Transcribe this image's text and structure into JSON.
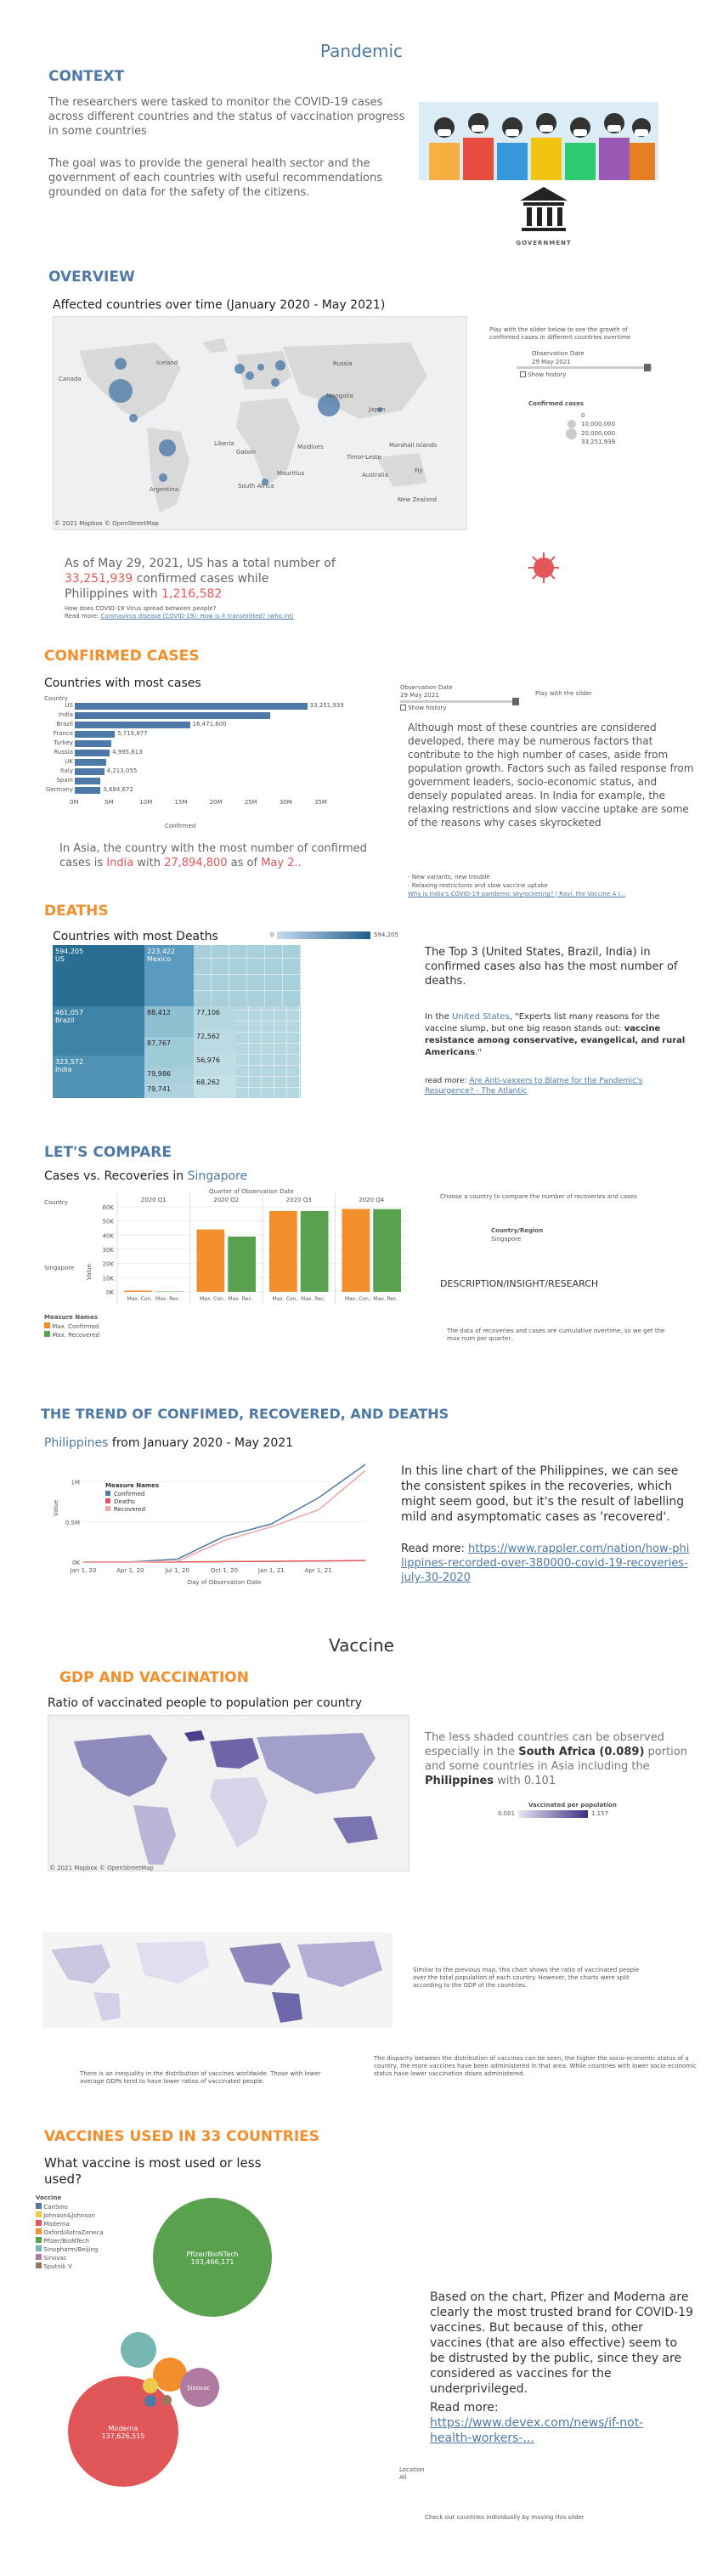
{
  "title": "Pandemic",
  "context": {
    "heading": "CONTEXT",
    "p1": "The researchers were tasked to monitor the COVID-19 cases across different countries and the status of vaccination progress in some countries",
    "p2": "The goal was to provide the general health sector and the government of each countries with useful recommendations grounded on data for the safety of the citizens.",
    "gov_label": "GOVERNMENT"
  },
  "overview": {
    "heading": "OVERVIEW",
    "chart_title": "Affected countries over time (January 2020 - May 2021)",
    "map_labels": [
      "Iceland",
      "Russia",
      "Canada",
      "Mongolia",
      "Japan",
      "Liberia",
      "Gabon",
      "Maldives",
      "Marshall Islands",
      "Timor-Leste",
      "Argentina",
      "Mauritius",
      "South Africa",
      "Australia",
      "Fiji",
      "New Zealand"
    ],
    "copyright": "© 2021 Mapbox © OpenStreetMap",
    "side_text": "Play with the slider below to see the growth of confirmed cases in different countries overtime",
    "obs_label": "Observation Date",
    "obs_value": "29 May 2021",
    "show_history": "Show history",
    "legend_title": "Confirmed cases",
    "legend_vals": [
      "0",
      "10,000,000",
      "20,000,000",
      "33,251,939"
    ],
    "summary_pre": "As of  May 29, 2021, US has a total number of",
    "summary_num": "33,251,939",
    "summary_mid": " confirmed cases while",
    "summary_country": "Philippines",
    "summary_with": " with ",
    "summary_ph": "1,216,582",
    "note1": "How does COVID-19 Virus spread between people?",
    "note2_pre": "Read more: ",
    "note2_link": "Coronavirus disease (COVID-19): How is it transmitted? (who.int)"
  },
  "confirmed": {
    "heading": "CONFIRMED CASES",
    "chart_title": "Countries with most cases",
    "country_label": "Country",
    "axis_title": "Confirmed",
    "ticks": [
      "0M",
      "5M",
      "10M",
      "15M",
      "20M",
      "25M",
      "30M",
      "35M"
    ],
    "obs_label": "Observation Date",
    "obs_value": "29 May 2021",
    "show_history": "Show history",
    "slider_hint": "Play with the slider",
    "body": "Although most of these countries are considered developed, there may be numerous factors that contribute to the high number of cases, aside from population growth. Factors such as failed response from government leaders, socio-economic status, and densely populated areas. In India for example, the relaxing restrictions and slow vaccine uptake are some of the reasons why cases skyrocketed",
    "b1": "- New variants, new trouble",
    "b2": "- Relaxing restrictions and slow vaccine uptake",
    "b3": "Why is India's COVID-19 pandemic skyrocketing? | Ravi, the Vaccine A I...",
    "asia_pre": "In Asia, the country with the most number of confirmed cases is ",
    "asia_country": "India",
    "asia_with": " with ",
    "asia_num": "27,894,800",
    "asia_as": " as of ",
    "asia_date": "May 2.."
  },
  "deaths": {
    "heading": "DEATHS",
    "chart_title": "Countries with most Deaths",
    "legend_min": "0",
    "legend_max": "594,205",
    "body1": "The Top 3 (United States, Brazil, India) in confirmed cases also has the most number of deaths.",
    "body2_pre": "In the ",
    "body2_country": "United States",
    "body2_text": ", \"Experts list many reasons for the vaccine slump, but one big reason stands out: ",
    "body2_bold": "vaccine resistance among conservative, evangelical, and rural Americans",
    "body2_end": ".\"",
    "read_pre": "read more: ",
    "read_link": "Are Anti-vaxxers to Blame for the Pandemic's Resurgence? - The Atlantic"
  },
  "compare": {
    "heading": "LET'S COMPARE",
    "chart_title_pre": "Cases vs. Recoveries in ",
    "chart_country": "Singapore",
    "top_label": "Quarter of Observation Date",
    "country_label": "Country",
    "row_label": "Singapore",
    "quarters": [
      "2020 Q1",
      "2020 Q2",
      "2020 Q3",
      "2020 Q4"
    ],
    "value_axis": "Value",
    "yticks": [
      "60K",
      "50K",
      "40K",
      "30K",
      "20K",
      "10K",
      "0K"
    ],
    "col_label": "Max. Con.. Max. Rec.",
    "legend_title": "Measure Names",
    "legend": [
      "Max. Confirmed",
      "Max. Recovered"
    ],
    "side_text": "Choose a country to compare the number of recoveries and cases",
    "region_label": "Country/Region",
    "region_value": "Singapore",
    "insight": "DESCRIPTION/INSIGHT/RESEARCH",
    "insight_text": "The data of recoveries and cases are cumulative overtime, so we get the max num per quarter.."
  },
  "trend": {
    "heading": "THE TREND OF CONFIMED, RECOVERED, AND DEATHS",
    "sub_country": "Philippines",
    "sub_rest": " from January 2020 - May 2021",
    "legend_title": "Measure Names",
    "legend": [
      "Confirmed",
      "Deaths",
      "Recovered"
    ],
    "yticks": [
      "1M",
      "0.5M",
      "0K"
    ],
    "xticks": [
      "Jan 1, 20",
      "Apr 1, 20",
      "Jul 1, 20",
      "Oct 1, 20",
      "Jan 1, 21",
      "Apr 1, 21"
    ],
    "xlabel": "Day of Observation Date",
    "ylabel": "Value",
    "body": "In this line chart of the Philippines, we can see the consistent spikes in the recoveries, which might seem good, but it's the result of labelling mild and asymptomatic cases as 'recovered'.",
    "read_pre": "Read more: ",
    "read_link": "https://www.rappler.com/nation/how-philippines-recorded-over-380000-covid-19-recoveries-july-30-2020"
  },
  "vaccine_title": "Vaccine",
  "gdp": {
    "heading": "GDP AND VACCINATION",
    "chart_title": "Ratio of vaccinated people to population per country",
    "copyright": "© 2021 Mapbox © OpenStreetMap",
    "body_pre": "The less shaded countries can be observed especially in the ",
    "body_region": "South Africa (0.089)",
    "body_mid": " portion and some countries in Asia including the ",
    "body_country": "Philippines",
    "body_end": " with 0.101",
    "legend_title": "Vaccinated per population",
    "legend_min": "0.001",
    "legend_max": "1.157",
    "text2": "Similar to the previous map, this chart shows the ratio of vaccinated people over the total population of each country. However, the charts were split according to the GDP of the countries.",
    "text3": "The disparity between the distribution of vaccines can be seen, the higher the socio-economic status of a country, the more vaccines have been administered in that area. While countries with lower socio-economic status have lower vaccination doses administered.",
    "text4": "There is an inequality in the distribution of vaccines worldwide. Those with lower average GDPs tend to have lower ratios of vaccinated people."
  },
  "vaccines": {
    "heading": "VACCINES USED IN 33 COUNTRIES",
    "chart_title": "What vaccine is most used or less used?",
    "legend_title": "Vaccine",
    "legend": [
      "CanSino",
      "Johnson&Johnson",
      "Moderna",
      "Oxford/AstraZeneca",
      "Pfizer/BioNTech",
      "Sinopharm/Beijing",
      "Sinovac",
      "Sputnik V"
    ],
    "bubble_pfizer": "Pfizer/BioNTech",
    "bubble_pfizer_val": "193,466,171",
    "bubble_moderna": "Moderna",
    "bubble_moderna_val": "137,626,515",
    "bubble_sinovac": "Sinovac",
    "body": "Based on the chart, Pfizer and Moderna are clearly the most trusted brand for COVID-19 vaccines. But because of this, other vaccines (that are also effective) seem to be distrusted by the public, since they are considered as vaccines for the underprivileged.",
    "read_pre": "Read more: ",
    "read_link": "https://www.devex.com/news/if-not-health-workers-...",
    "loc_label": "Location",
    "loc_value": "All",
    "footer": "Check out countries individually by moving this slider"
  },
  "chart_data": [
    {
      "type": "bar",
      "title": "Countries with most cases",
      "categories": [
        "US",
        "India",
        "Brazil",
        "France",
        "Turkey",
        "Russia",
        "UK",
        "Italy",
        "Spain",
        "Germany"
      ],
      "values": [
        33251939,
        27894800,
        16471600,
        5719877,
        5235978,
        4995613,
        4496823,
        4213055,
        3668658,
        3684672
      ],
      "labels": [
        "33,251,939",
        "",
        "16,471,600",
        "5,719,877",
        "",
        "4,995,613",
        "",
        "4,213,055",
        "",
        "3,684,672"
      ],
      "xlabel": "Confirmed",
      "xlim": [
        0,
        35000000
      ]
    },
    {
      "type": "bar",
      "title": "Cases vs. Recoveries in Singapore",
      "categories": [
        "2020 Q1",
        "2020 Q2",
        "2020 Q3",
        "2020 Q4"
      ],
      "series": [
        {
          "name": "Max. Confirmed",
          "values": [
            900,
            44000,
            57000,
            58500
          ]
        },
        {
          "name": "Max. Recovered",
          "values": [
            300,
            39000,
            57000,
            58400
          ]
        }
      ],
      "ylabel": "Value",
      "ylim": [
        0,
        60000
      ]
    },
    {
      "type": "line",
      "title": "Philippines from January 2020 - May 2021",
      "x": [
        "Jan 1, 20",
        "Apr 1, 20",
        "Jul 1, 20",
        "Oct 1, 20",
        "Jan 1, 21",
        "Apr 1, 21",
        "May 29, 21"
      ],
      "series": [
        {
          "name": "Confirmed",
          "values": [
            0,
            2000,
            37000,
            320000,
            475000,
            800000,
            1216582
          ]
        },
        {
          "name": "Deaths",
          "values": [
            0,
            100,
            1200,
            6000,
            9200,
            14000,
            20500
          ]
        },
        {
          "name": "Recovered",
          "values": [
            0,
            50,
            10000,
            270000,
            440000,
            650000,
            1140000
          ]
        }
      ],
      "ylabel": "Value",
      "xlabel": "Day of Observation Date"
    }
  ],
  "colors": {
    "accent": "#4e79a7",
    "orange": "#f28e2b",
    "green": "#59a14f",
    "red": "#e15759"
  }
}
